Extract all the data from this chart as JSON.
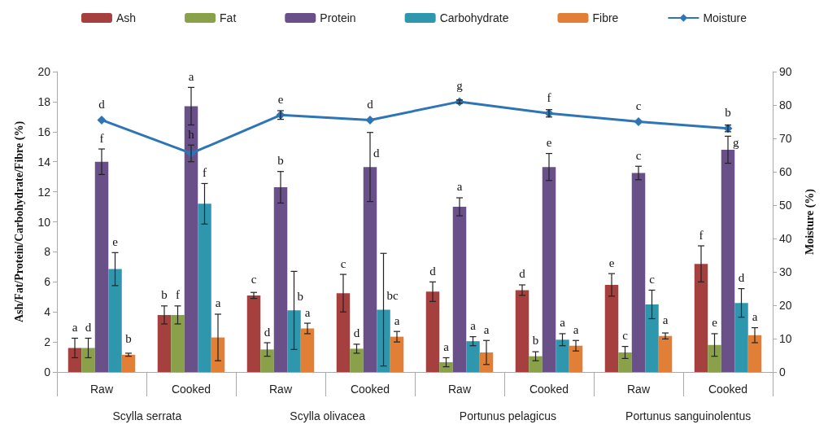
{
  "chart_data": {
    "type": "bar",
    "categories": [
      "Raw",
      "Cooked",
      "Raw",
      "Cooked",
      "Raw",
      "Cooked",
      "Raw",
      "Cooked"
    ],
    "annotations": [
      "Scylla serrata",
      "Scylla olivacea",
      "Portunus pelagicus",
      "Portunus sanguinolentus"
    ],
    "ylabel": "Ash/Fat/Protein/Carbohydrate/Fibre (%)",
    "y2label": "Moisture (%)",
    "ylim": [
      0,
      20
    ],
    "yticks": [
      0,
      2,
      4,
      6,
      8,
      10,
      12,
      14,
      16,
      18,
      20
    ],
    "y2lim": [
      0,
      90
    ],
    "y2ticks": [
      0,
      10,
      20,
      30,
      40,
      50,
      60,
      70,
      80,
      90
    ],
    "legend": "top",
    "grid": false,
    "marker": "diamond",
    "series": [
      {
        "name": "Ash",
        "color": "#a5403f",
        "values": [
          1.6,
          3.8,
          5.1,
          5.25,
          5.35,
          5.45,
          5.8,
          7.2
        ],
        "errors": [
          0.65,
          0.6,
          0.2,
          1.25,
          0.65,
          0.35,
          0.75,
          1.2
        ],
        "value_labels": [
          "a",
          "b",
          "c",
          "c",
          "d",
          "d",
          "e",
          "f"
        ]
      },
      {
        "name": "Fat",
        "color": "#8aa14a",
        "values": [
          1.6,
          3.8,
          1.5,
          1.55,
          0.65,
          1.05,
          1.3,
          1.8
        ],
        "errors": [
          0.65,
          0.6,
          0.45,
          0.3,
          0.3,
          0.3,
          0.4,
          0.75
        ],
        "value_labels": [
          "d",
          "f",
          "d",
          "d",
          "a",
          "b",
          "c",
          "e"
        ]
      },
      {
        "name": "Protein",
        "color": "#6a5089",
        "values": [
          14.0,
          17.7,
          12.3,
          13.65,
          11.0,
          13.65,
          13.25,
          14.8
        ],
        "errors": [
          0.85,
          1.25,
          1.05,
          2.3,
          0.6,
          0.9,
          0.45,
          0.9
        ],
        "value_labels": [
          "f",
          "a",
          "b",
          "d",
          "a",
          "e",
          "c",
          "g"
        ]
      },
      {
        "name": "Carbohydrate",
        "color": "#2f97ad",
        "values": [
          6.85,
          11.2,
          4.1,
          4.15,
          2.05,
          2.15,
          4.5,
          4.6
        ],
        "errors": [
          1.1,
          1.35,
          2.6,
          3.75,
          0.3,
          0.4,
          0.95,
          0.95
        ],
        "value_labels": [
          "e",
          "f",
          "b",
          "bc",
          "a",
          "a",
          "c",
          "d"
        ]
      },
      {
        "name": "Fibre",
        "color": "#e17f37",
        "values": [
          1.15,
          2.3,
          2.9,
          2.35,
          1.3,
          1.75,
          2.4,
          2.45
        ],
        "errors": [
          0.1,
          1.55,
          0.35,
          0.35,
          0.8,
          0.35,
          0.2,
          0.5
        ],
        "value_labels": [
          "b",
          "a",
          "a",
          "a",
          "a",
          "a",
          "a",
          "a"
        ]
      },
      {
        "name": "Moisture",
        "type": "line",
        "axis": "y2",
        "color": "#2e75b6",
        "values": [
          75.5,
          65.5,
          77,
          75.5,
          81,
          77.5,
          75,
          73
        ],
        "errors": [
          null,
          2.5,
          1.3,
          null,
          0.5,
          1.1,
          null,
          1
        ],
        "value_labels": [
          "d",
          "h",
          "e",
          "d",
          "g",
          "f",
          "c",
          "b"
        ]
      }
    ]
  }
}
